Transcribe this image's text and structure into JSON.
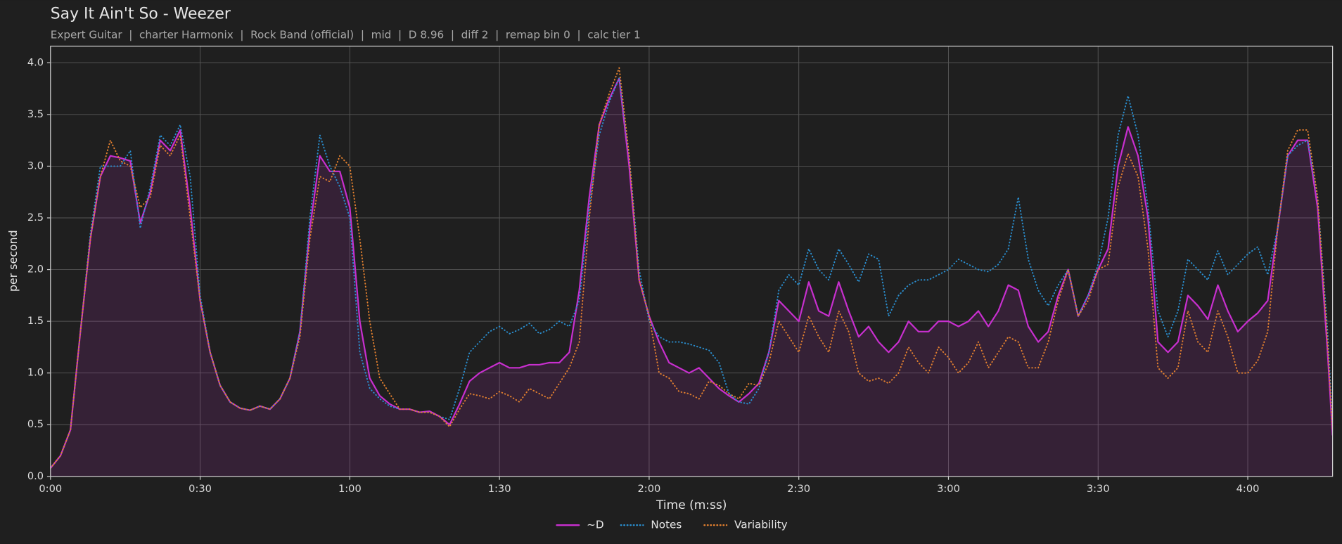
{
  "chart_data": {
    "type": "line",
    "title": "Say It Ain't So - Weezer",
    "subtitle": "Expert Guitar  |  charter Harmonix  |  Rock Band (official)  |  mid  |  D 8.96  |  diff 2  |  remap bin 0  |  calc tier 1",
    "x_label": "Time (m:ss)",
    "y_label": "per second",
    "x": [
      0,
      2,
      4,
      6,
      8,
      10,
      12,
      14,
      16,
      18,
      20,
      22,
      24,
      26,
      28,
      30,
      32,
      34,
      36,
      38,
      40,
      42,
      44,
      46,
      48,
      50,
      52,
      54,
      56,
      58,
      60,
      62,
      64,
      66,
      68,
      70,
      72,
      74,
      76,
      78,
      80,
      82,
      84,
      86,
      88,
      90,
      92,
      94,
      96,
      98,
      100,
      102,
      104,
      106,
      108,
      110,
      112,
      114,
      116,
      118,
      120,
      122,
      124,
      126,
      128,
      130,
      132,
      134,
      136,
      138,
      140,
      142,
      144,
      146,
      148,
      150,
      152,
      154,
      156,
      158,
      160,
      162,
      164,
      166,
      168,
      170,
      172,
      174,
      176,
      178,
      180,
      182,
      184,
      186,
      188,
      190,
      192,
      194,
      196,
      198,
      200,
      202,
      204,
      206,
      208,
      210,
      212,
      214,
      216,
      218,
      220,
      222,
      224,
      226,
      228,
      230,
      232,
      234,
      236,
      238,
      240,
      242,
      244,
      246,
      248,
      250,
      252,
      254,
      256,
      257
    ],
    "series": [
      {
        "name": "~D",
        "color": "#c82fcf",
        "style": "solid",
        "fill": true,
        "values": [
          0.08,
          0.2,
          0.45,
          1.4,
          2.3,
          2.9,
          3.1,
          3.08,
          3.05,
          2.45,
          2.75,
          3.25,
          3.15,
          3.35,
          2.6,
          1.7,
          1.2,
          0.88,
          0.72,
          0.66,
          0.64,
          0.68,
          0.65,
          0.75,
          0.95,
          1.4,
          2.4,
          3.1,
          2.95,
          2.95,
          2.6,
          1.5,
          0.95,
          0.78,
          0.7,
          0.65,
          0.65,
          0.62,
          0.63,
          0.58,
          0.5,
          0.7,
          0.92,
          1.0,
          1.05,
          1.1,
          1.05,
          1.05,
          1.08,
          1.08,
          1.1,
          1.1,
          1.2,
          1.8,
          2.7,
          3.4,
          3.65,
          3.85,
          3.0,
          1.9,
          1.55,
          1.3,
          1.1,
          1.05,
          1.0,
          1.05,
          0.95,
          0.85,
          0.78,
          0.72,
          0.8,
          0.9,
          1.2,
          1.7,
          1.6,
          1.5,
          1.88,
          1.6,
          1.55,
          1.88,
          1.6,
          1.35,
          1.45,
          1.3,
          1.2,
          1.3,
          1.5,
          1.4,
          1.4,
          1.5,
          1.5,
          1.45,
          1.5,
          1.6,
          1.45,
          1.6,
          1.85,
          1.8,
          1.45,
          1.3,
          1.4,
          1.75,
          2.0,
          1.55,
          1.75,
          2.0,
          2.2,
          3.0,
          3.38,
          3.1,
          2.5,
          1.3,
          1.2,
          1.3,
          1.75,
          1.65,
          1.52,
          1.85,
          1.6,
          1.4,
          1.5,
          1.58,
          1.7,
          2.4,
          3.1,
          3.25,
          3.25,
          2.6,
          1.2,
          0.4
        ]
      },
      {
        "name": "Notes",
        "color": "#2a8fd0",
        "style": "dotted",
        "fill": false,
        "values": [
          0.08,
          0.2,
          0.45,
          1.4,
          2.35,
          3.0,
          3.0,
          3.0,
          3.15,
          2.4,
          2.8,
          3.3,
          3.2,
          3.4,
          2.9,
          1.75,
          1.2,
          0.88,
          0.72,
          0.66,
          0.64,
          0.68,
          0.65,
          0.75,
          0.95,
          1.4,
          2.5,
          3.3,
          3.0,
          2.8,
          2.5,
          1.2,
          0.85,
          0.75,
          0.68,
          0.65,
          0.65,
          0.62,
          0.62,
          0.58,
          0.55,
          0.85,
          1.2,
          1.3,
          1.4,
          1.45,
          1.38,
          1.42,
          1.48,
          1.38,
          1.42,
          1.5,
          1.45,
          1.7,
          2.6,
          3.3,
          3.62,
          3.85,
          3.1,
          2.0,
          1.5,
          1.35,
          1.3,
          1.3,
          1.28,
          1.25,
          1.22,
          1.1,
          0.8,
          0.72,
          0.7,
          0.85,
          1.2,
          1.8,
          1.95,
          1.85,
          2.2,
          2.0,
          1.9,
          2.2,
          2.05,
          1.88,
          2.15,
          2.1,
          1.55,
          1.75,
          1.85,
          1.9,
          1.9,
          1.95,
          2.0,
          2.1,
          2.05,
          2.0,
          1.98,
          2.05,
          2.2,
          2.7,
          2.1,
          1.8,
          1.65,
          1.85,
          2.0,
          1.55,
          1.75,
          2.05,
          2.5,
          3.3,
          3.68,
          3.3,
          2.6,
          1.6,
          1.35,
          1.6,
          2.1,
          2.0,
          1.9,
          2.18,
          1.95,
          2.05,
          2.15,
          2.22,
          1.95,
          2.4,
          3.1,
          3.2,
          3.25,
          2.7,
          1.4,
          0.5
        ]
      },
      {
        "name": "Variability",
        "color": "#e3802f",
        "style": "dotted",
        "fill": false,
        "values": [
          0.08,
          0.2,
          0.45,
          1.4,
          2.3,
          2.9,
          3.25,
          3.05,
          3.0,
          2.6,
          2.7,
          3.2,
          3.1,
          3.3,
          2.5,
          1.7,
          1.2,
          0.88,
          0.72,
          0.66,
          0.64,
          0.68,
          0.65,
          0.75,
          0.95,
          1.35,
          2.3,
          2.9,
          2.85,
          3.1,
          3.0,
          2.3,
          1.5,
          0.95,
          0.8,
          0.65,
          0.65,
          0.62,
          0.62,
          0.58,
          0.48,
          0.65,
          0.8,
          0.78,
          0.75,
          0.82,
          0.78,
          0.72,
          0.85,
          0.8,
          0.75,
          0.9,
          1.05,
          1.3,
          2.5,
          3.4,
          3.7,
          3.95,
          3.1,
          1.9,
          1.55,
          1.0,
          0.95,
          0.82,
          0.8,
          0.75,
          0.92,
          0.88,
          0.8,
          0.75,
          0.9,
          0.88,
          1.1,
          1.5,
          1.35,
          1.2,
          1.55,
          1.35,
          1.2,
          1.6,
          1.4,
          1.0,
          0.92,
          0.95,
          0.9,
          1.0,
          1.25,
          1.1,
          1.0,
          1.25,
          1.15,
          1.0,
          1.1,
          1.3,
          1.05,
          1.2,
          1.35,
          1.3,
          1.05,
          1.05,
          1.3,
          1.7,
          2.0,
          1.55,
          1.7,
          2.0,
          2.05,
          2.8,
          3.12,
          2.9,
          2.2,
          1.05,
          0.95,
          1.05,
          1.6,
          1.3,
          1.2,
          1.6,
          1.35,
          1.0,
          1.0,
          1.12,
          1.4,
          2.4,
          3.15,
          3.35,
          3.35,
          2.7,
          1.3,
          0.45
        ]
      }
    ],
    "xlim": [
      0,
      257
    ],
    "ylim": [
      0,
      4.16
    ],
    "xticks": [
      {
        "value": 0,
        "label": "0:00"
      },
      {
        "value": 30,
        "label": "0:30"
      },
      {
        "value": 60,
        "label": "1:00"
      },
      {
        "value": 90,
        "label": "1:30"
      },
      {
        "value": 120,
        "label": "2:00"
      },
      {
        "value": 150,
        "label": "2:30"
      },
      {
        "value": 180,
        "label": "3:00"
      },
      {
        "value": 210,
        "label": "3:30"
      },
      {
        "value": 240,
        "label": "4:00"
      }
    ],
    "yticks": [
      {
        "value": 0,
        "label": "0.0"
      },
      0.5,
      {
        "value": 1,
        "label": "1.0"
      },
      1.5,
      {
        "value": 2,
        "label": "2.0"
      },
      2.5,
      {
        "value": 3,
        "label": "3.0"
      },
      3.5,
      {
        "value": 4,
        "label": "4.0"
      }
    ],
    "grid": true,
    "legend": "bottom"
  }
}
